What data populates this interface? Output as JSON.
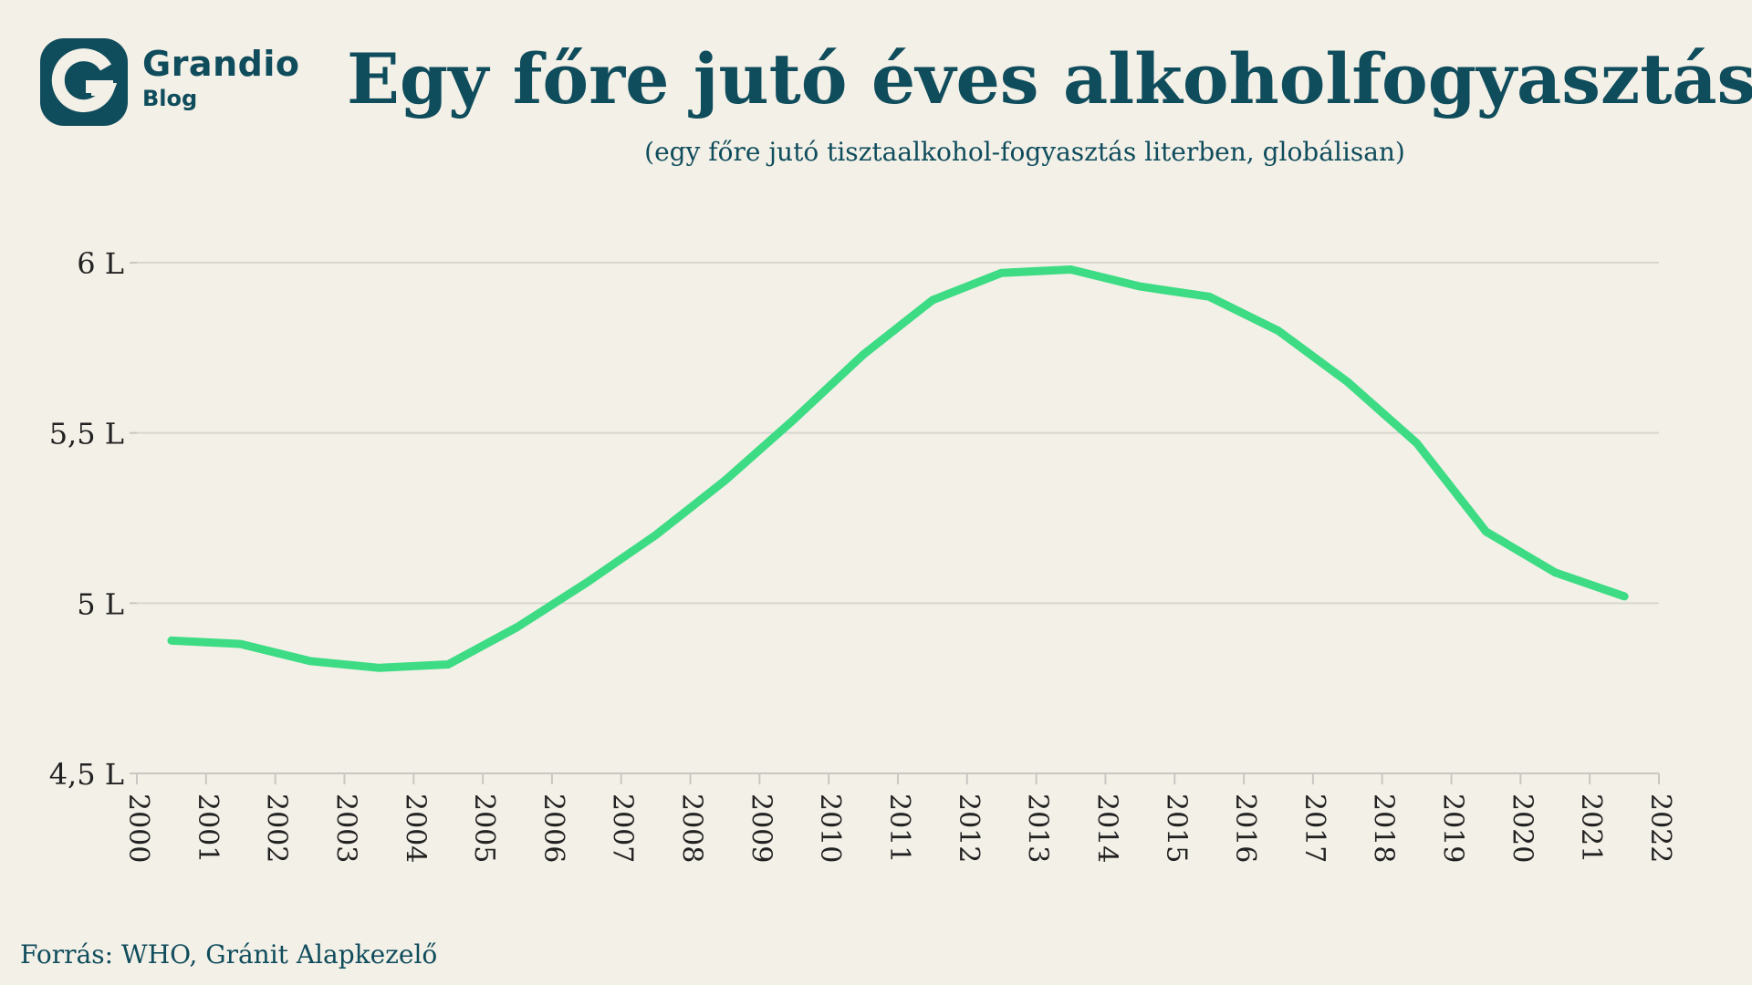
{
  "header": {
    "logo_name": "Grandio",
    "logo_sub": "Blog",
    "title": "Egy főre jutó éves alkoholfogyasztás",
    "subtitle": "(egy főre jutó tisztaalkohol-fogyasztás literben, globálisan)"
  },
  "footer": {
    "source": "Forrás: WHO, Gránit Alapkezelő"
  },
  "colors": {
    "brand": "#0f4c5c",
    "line": "#3ddc84",
    "grid": "#d9d7d2",
    "axis": "#c9c7c2",
    "background": "#f3f0e7"
  },
  "chart_data": {
    "type": "line",
    "title": "Egy főre jutó éves alkoholfogyasztás",
    "subtitle": "(egy főre jutó tisztaalkohol-fogyasztás literben, globálisan)",
    "xlabel": "",
    "ylabel": "",
    "x_ticks": [
      "2000",
      "2001",
      "2002",
      "2003",
      "2004",
      "2005",
      "2006",
      "2007",
      "2008",
      "2009",
      "2010",
      "2011",
      "2012",
      "2013",
      "2014",
      "2015",
      "2016",
      "2017",
      "2018",
      "2019",
      "2020",
      "2021",
      "2022"
    ],
    "y_ticks": [
      4.5,
      5,
      5.5,
      6
    ],
    "y_tick_labels": [
      "4,5 L",
      "5 L",
      "5,5 L",
      "6 L"
    ],
    "ylim": [
      4.5,
      6
    ],
    "xlim": [
      2000,
      2022
    ],
    "grid": "horizontal",
    "legend": "none",
    "series": [
      {
        "x": [
          2000.5,
          2001.5,
          2002.5,
          2003.5,
          2004.5,
          2005.5,
          2006.5,
          2007.5,
          2008.5,
          2009.5,
          2010.5,
          2011.5,
          2012.5,
          2013.5,
          2014.5,
          2015.5,
          2016.5,
          2017.5,
          2018.5,
          2019.5,
          2020.5,
          2021.5
        ],
        "values": [
          4.89,
          4.88,
          4.83,
          4.81,
          4.82,
          4.93,
          5.06,
          5.2,
          5.36,
          5.54,
          5.73,
          5.89,
          5.97,
          5.98,
          5.93,
          5.9,
          5.8,
          5.65,
          5.47,
          5.21,
          5.09,
          5.02
        ],
        "values_end": 5.02
      }
    ]
  }
}
